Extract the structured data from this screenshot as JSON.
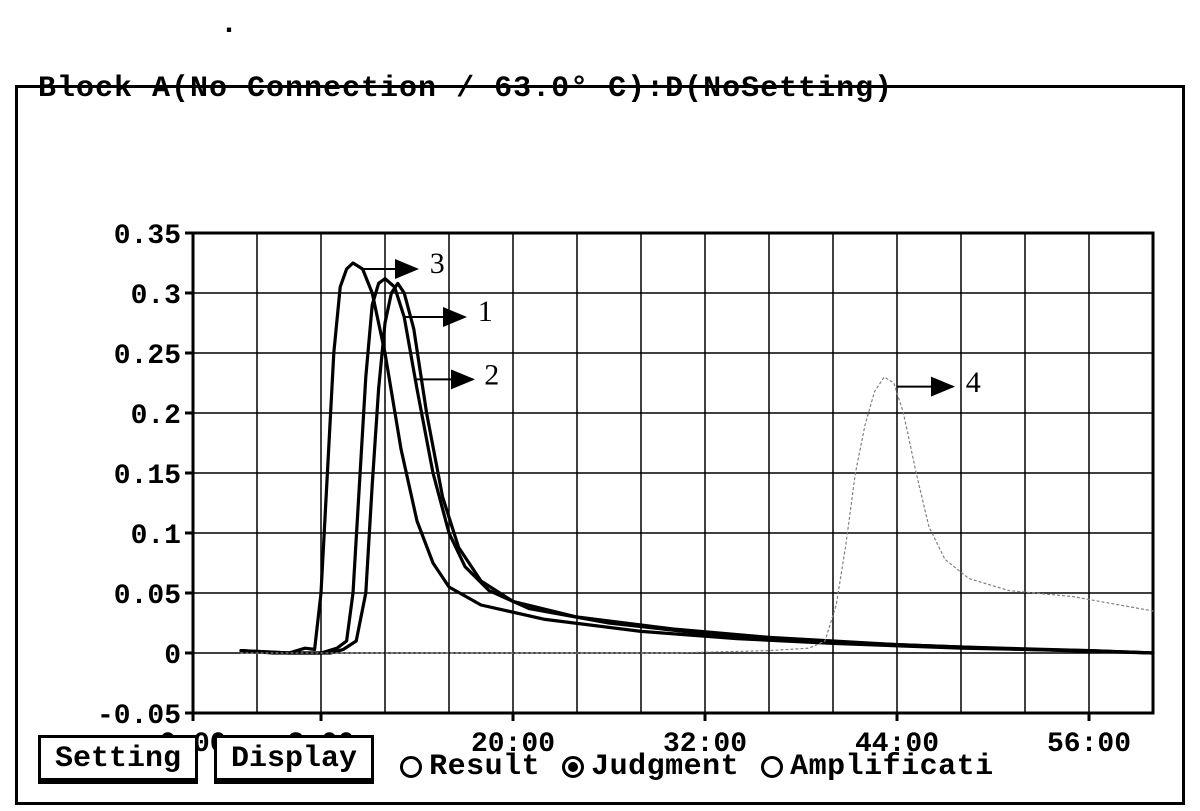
{
  "panel": {
    "dot_mark": ".",
    "title": "Block A(No Connection / 63.0° C):D(NoSetting)"
  },
  "chart": {
    "type": "line",
    "background_color": "#ffffff",
    "grid_color": "#000000",
    "axis_color": "#000000",
    "axis_line_width": 3,
    "grid_line_width": 1.5,
    "tick_font_size": 28,
    "plot": {
      "x0_user": 0,
      "x1_user": 60,
      "y0_user": -0.05,
      "y1_user": 0.35
    },
    "y_axis": {
      "ticks": [
        -0.05,
        0,
        0.05,
        0.1,
        0.15,
        0.2,
        0.25,
        0.3,
        0.35
      ],
      "tick_labels": [
        "-0.05",
        "0",
        "0.05",
        "0.1",
        "0.15",
        "0.2",
        "0.25",
        "0.3",
        "0.35"
      ],
      "grid_step": 0.05
    },
    "x_axis": {
      "ticks": [
        0,
        8,
        20,
        32,
        44,
        56
      ],
      "tick_labels": [
        "0:00",
        "8:00",
        "20:00",
        "32:00",
        "44:00",
        "56:00"
      ],
      "grid_step": 4,
      "grid_start": 0,
      "grid_end": 60
    },
    "series": [
      {
        "id": 3,
        "color": "#000000",
        "line_width": 3.2,
        "style": "solid",
        "points": [
          [
            3.0,
            0.002
          ],
          [
            5.0,
            0.0
          ],
          [
            6.0,
            0.0
          ],
          [
            7.0,
            0.004
          ],
          [
            7.6,
            0.003
          ],
          [
            8.0,
            0.05
          ],
          [
            8.4,
            0.15
          ],
          [
            8.8,
            0.25
          ],
          [
            9.2,
            0.305
          ],
          [
            9.6,
            0.32
          ],
          [
            10.0,
            0.325
          ],
          [
            10.6,
            0.32
          ],
          [
            11.2,
            0.3
          ],
          [
            12.0,
            0.25
          ],
          [
            13.0,
            0.17
          ],
          [
            14.0,
            0.11
          ],
          [
            15.0,
            0.075
          ],
          [
            16.0,
            0.055
          ],
          [
            18.0,
            0.04
          ],
          [
            22.0,
            0.028
          ],
          [
            28.0,
            0.018
          ],
          [
            34.0,
            0.012
          ],
          [
            40.0,
            0.008
          ],
          [
            48.0,
            0.004
          ],
          [
            56.0,
            0.002
          ],
          [
            60.0,
            0.0
          ]
        ]
      },
      {
        "id": 1,
        "color": "#000000",
        "line_width": 3.2,
        "style": "solid",
        "points": [
          [
            3.0,
            0.002
          ],
          [
            6.0,
            0.0
          ],
          [
            8.0,
            0.0
          ],
          [
            9.0,
            0.004
          ],
          [
            9.6,
            0.01
          ],
          [
            10.0,
            0.05
          ],
          [
            10.4,
            0.14
          ],
          [
            10.8,
            0.23
          ],
          [
            11.2,
            0.29
          ],
          [
            11.6,
            0.308
          ],
          [
            12.0,
            0.312
          ],
          [
            12.6,
            0.305
          ],
          [
            13.2,
            0.28
          ],
          [
            14.0,
            0.22
          ],
          [
            15.0,
            0.15
          ],
          [
            16.0,
            0.1
          ],
          [
            17.0,
            0.072
          ],
          [
            18.5,
            0.052
          ],
          [
            21.0,
            0.037
          ],
          [
            26.0,
            0.025
          ],
          [
            32.0,
            0.016
          ],
          [
            40.0,
            0.009
          ],
          [
            48.0,
            0.005
          ],
          [
            56.0,
            0.002
          ],
          [
            60.0,
            0.0
          ]
        ]
      },
      {
        "id": 2,
        "color": "#000000",
        "line_width": 3.2,
        "style": "solid",
        "points": [
          [
            3.0,
            0.002
          ],
          [
            6.0,
            0.0
          ],
          [
            8.6,
            0.0
          ],
          [
            9.4,
            0.003
          ],
          [
            10.2,
            0.01
          ],
          [
            10.8,
            0.05
          ],
          [
            11.2,
            0.14
          ],
          [
            11.6,
            0.22
          ],
          [
            12.0,
            0.275
          ],
          [
            12.4,
            0.3
          ],
          [
            12.8,
            0.308
          ],
          [
            13.2,
            0.3
          ],
          [
            13.8,
            0.27
          ],
          [
            14.6,
            0.2
          ],
          [
            15.6,
            0.13
          ],
          [
            16.6,
            0.088
          ],
          [
            18.0,
            0.06
          ],
          [
            20.0,
            0.043
          ],
          [
            24.0,
            0.03
          ],
          [
            30.0,
            0.02
          ],
          [
            36.0,
            0.013
          ],
          [
            44.0,
            0.007
          ],
          [
            52.0,
            0.003
          ],
          [
            60.0,
            0.0
          ]
        ]
      },
      {
        "id": 4,
        "color": "#808080",
        "line_width": 1.2,
        "style": "dotted",
        "points": [
          [
            3.0,
            0.0
          ],
          [
            30.0,
            0.0
          ],
          [
            36.0,
            0.002
          ],
          [
            38.5,
            0.004
          ],
          [
            39.5,
            0.01
          ],
          [
            40.2,
            0.04
          ],
          [
            40.8,
            0.09
          ],
          [
            41.4,
            0.15
          ],
          [
            42.0,
            0.19
          ],
          [
            42.6,
            0.218
          ],
          [
            43.2,
            0.23
          ],
          [
            43.8,
            0.225
          ],
          [
            44.4,
            0.2
          ],
          [
            45.2,
            0.15
          ],
          [
            46.0,
            0.105
          ],
          [
            47.0,
            0.078
          ],
          [
            48.5,
            0.062
          ],
          [
            51.0,
            0.052
          ],
          [
            55.0,
            0.047
          ],
          [
            60.0,
            0.035
          ]
        ]
      }
    ],
    "annotations": [
      {
        "label": "3",
        "arrow_from": [
          10.5,
          0.32
        ],
        "arrow_to": [
          14.0,
          0.32
        ],
        "label_at": [
          14.8,
          0.325
        ],
        "line_width": 2
      },
      {
        "label": "1",
        "arrow_from": [
          13.2,
          0.28
        ],
        "arrow_to": [
          17.0,
          0.28
        ],
        "label_at": [
          17.8,
          0.285
        ],
        "line_width": 2
      },
      {
        "label": "2",
        "arrow_from": [
          13.8,
          0.228
        ],
        "arrow_to": [
          17.5,
          0.228
        ],
        "label_at": [
          18.2,
          0.232
        ],
        "line_width": 2
      },
      {
        "label": "4",
        "arrow_from": [
          44.0,
          0.222
        ],
        "arrow_to": [
          47.5,
          0.222
        ],
        "label_at": [
          48.3,
          0.226
        ],
        "line_width": 2
      }
    ]
  },
  "bottom": {
    "tabs": [
      {
        "id": "setting",
        "label": "Setting"
      },
      {
        "id": "display",
        "label": "Display"
      }
    ],
    "radios": [
      {
        "id": "result",
        "label": "Result",
        "selected": false
      },
      {
        "id": "judgment",
        "label": "Judgment",
        "selected": true
      },
      {
        "id": "amplif",
        "label": "Amplificati",
        "selected": false
      }
    ]
  }
}
